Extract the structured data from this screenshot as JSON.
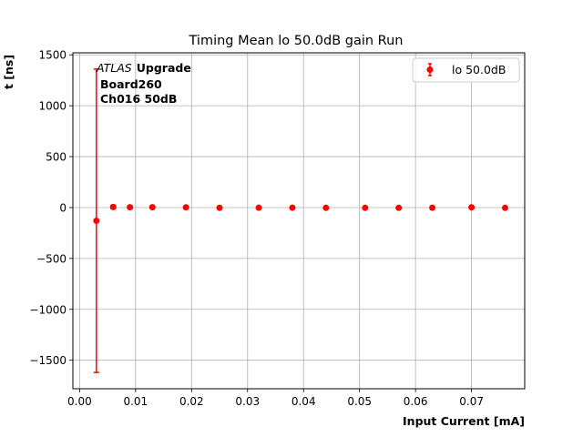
{
  "chart_data": {
    "type": "scatter",
    "title": "Timing Mean lo 50.0dB gain Run",
    "xlabel": "Input Current [mA]",
    "ylabel": "t [ns]",
    "xlim": [
      -0.0012,
      0.0795
    ],
    "ylim": [
      -1780,
      1520
    ],
    "xticks": [
      0.0,
      0.01,
      0.02,
      0.03,
      0.04,
      0.05,
      0.06,
      0.07
    ],
    "xtick_labels": [
      "0.00",
      "0.01",
      "0.02",
      "0.03",
      "0.04",
      "0.05",
      "0.06",
      "0.07"
    ],
    "yticks": [
      -1500,
      -1000,
      -500,
      0,
      500,
      1000,
      1500
    ],
    "ytick_labels": [
      "−1500",
      "−1000",
      "−500",
      "0",
      "500",
      "1000",
      "1500"
    ],
    "grid": true,
    "legend_position": "top-right",
    "annotation": {
      "italic": "ATLAS",
      "bold": "Upgrade",
      "line2": "Board260",
      "line3": "Ch016 50dB"
    },
    "series": [
      {
        "name": "lo 50.0dB",
        "color": "#ff0000",
        "marker": "circle",
        "points": [
          {
            "x": 0.003,
            "y": -130,
            "yerr_low": -1620,
            "yerr_high": 1360
          },
          {
            "x": 0.006,
            "y": 5,
            "yerr_low": -12,
            "yerr_high": 22
          },
          {
            "x": 0.009,
            "y": 3,
            "yerr_low": -5,
            "yerr_high": 11
          },
          {
            "x": 0.013,
            "y": 3
          },
          {
            "x": 0.019,
            "y": 2
          },
          {
            "x": 0.025,
            "y": -3
          },
          {
            "x": 0.032,
            "y": -2
          },
          {
            "x": 0.038,
            "y": -2
          },
          {
            "x": 0.044,
            "y": -3
          },
          {
            "x": 0.051,
            "y": -3
          },
          {
            "x": 0.057,
            "y": -3
          },
          {
            "x": 0.063,
            "y": -2
          },
          {
            "x": 0.07,
            "y": 2
          },
          {
            "x": 0.076,
            "y": -3
          }
        ]
      }
    ]
  }
}
